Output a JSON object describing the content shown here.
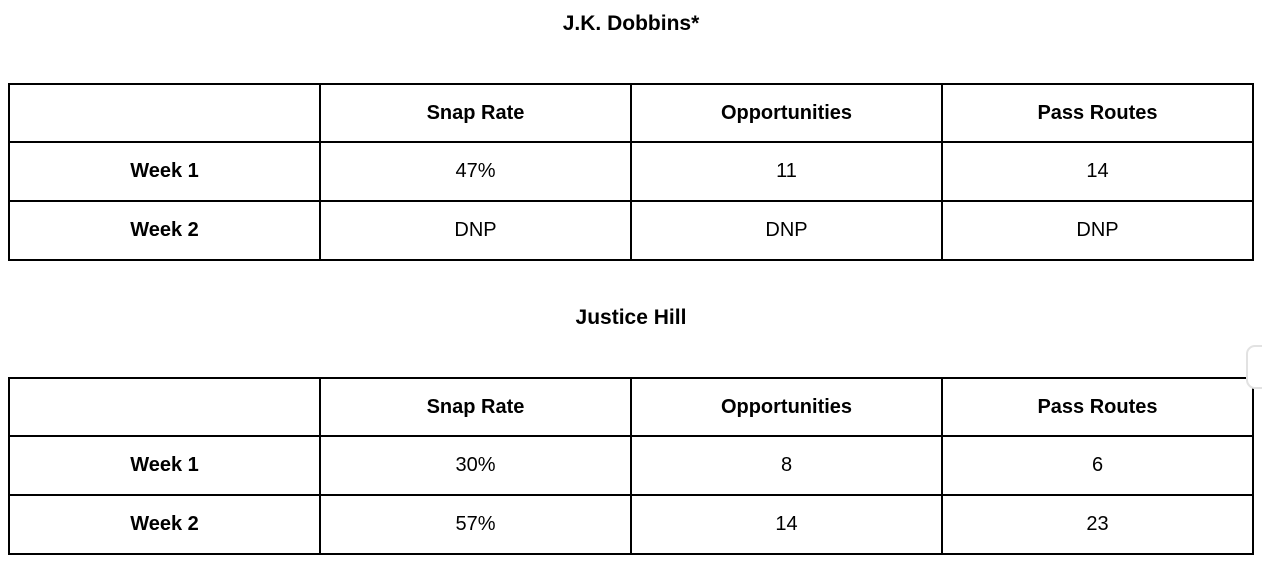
{
  "page": {
    "background_color": "#ffffff",
    "table_border_color": "#000000",
    "text_color": "#000000"
  },
  "tables": [
    {
      "title": "J.K. Dobbins*",
      "columns": [
        "",
        "Snap Rate",
        "Opportunities",
        "Pass Routes"
      ],
      "rows": [
        {
          "label": "Week 1",
          "values": [
            "47%",
            "11",
            "14"
          ]
        },
        {
          "label": "Week 2",
          "values": [
            "DNP",
            "DNP",
            "DNP"
          ]
        }
      ]
    },
    {
      "title": "Justice Hill",
      "columns": [
        "",
        "Snap Rate",
        "Opportunities",
        "Pass Routes"
      ],
      "rows": [
        {
          "label": "Week 1",
          "values": [
            "30%",
            "8",
            "6"
          ]
        },
        {
          "label": "Week 2",
          "values": [
            "57%",
            "14",
            "23"
          ]
        }
      ]
    }
  ],
  "chart_data": [
    {
      "type": "table",
      "title": "J.K. Dobbins*",
      "columns": [
        "",
        "Snap Rate",
        "Opportunities",
        "Pass Routes"
      ],
      "rows": [
        [
          "Week 1",
          "47%",
          "11",
          "14"
        ],
        [
          "Week 2",
          "DNP",
          "DNP",
          "DNP"
        ]
      ]
    },
    {
      "type": "table",
      "title": "Justice Hill",
      "columns": [
        "",
        "Snap Rate",
        "Opportunities",
        "Pass Routes"
      ],
      "rows": [
        [
          "Week 1",
          "30%",
          "8",
          "6"
        ],
        [
          "Week 2",
          "57%",
          "14",
          "23"
        ]
      ]
    }
  ]
}
